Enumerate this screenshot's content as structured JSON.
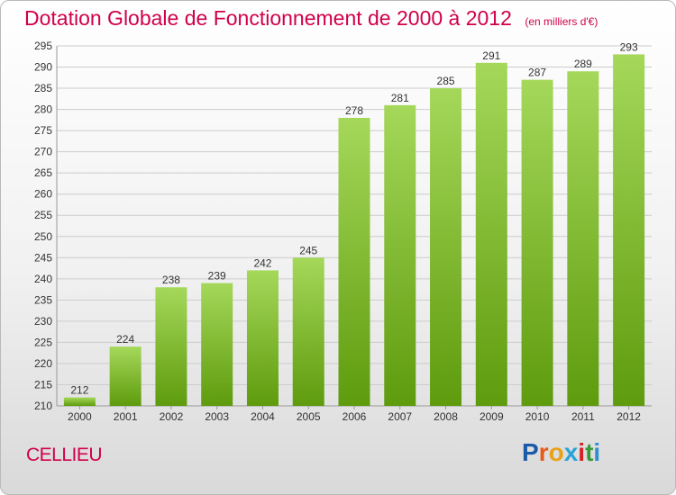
{
  "header": {
    "title": "Dotation Globale de Fonctionnement de 2000 à 2012",
    "unit_note": "(en milliers d'€)"
  },
  "footer": {
    "commune": "CELLIEU",
    "logo_text": "Proxiti",
    "logo_colors": [
      "#1a5aa8",
      "#e85a1a",
      "#e8a21a",
      "#29a3d8",
      "#d81f26",
      "#3a9a3a",
      "#2b8fd1"
    ]
  },
  "colors": {
    "bar_light": "#a5d85a",
    "bar_dark": "#5e9b0d",
    "grid": "#cccccc",
    "title": "#d0004a"
  },
  "chart_data": {
    "type": "bar",
    "categories": [
      "2000",
      "2001",
      "2002",
      "2003",
      "2004",
      "2005",
      "2006",
      "2007",
      "2008",
      "2009",
      "2010",
      "2011",
      "2012"
    ],
    "values": [
      212,
      224,
      238,
      239,
      242,
      245,
      278,
      281,
      285,
      291,
      287,
      289,
      293
    ],
    "data_labels": [
      "212",
      "224",
      "238",
      "239",
      "242",
      "245",
      "278",
      "281",
      "285",
      "291",
      "287",
      "289",
      "293"
    ],
    "ylim": [
      210,
      295
    ],
    "yticks": [
      210,
      215,
      220,
      225,
      230,
      235,
      240,
      245,
      250,
      255,
      260,
      265,
      270,
      275,
      280,
      285,
      290,
      295
    ],
    "grid": true,
    "legend": "none"
  }
}
